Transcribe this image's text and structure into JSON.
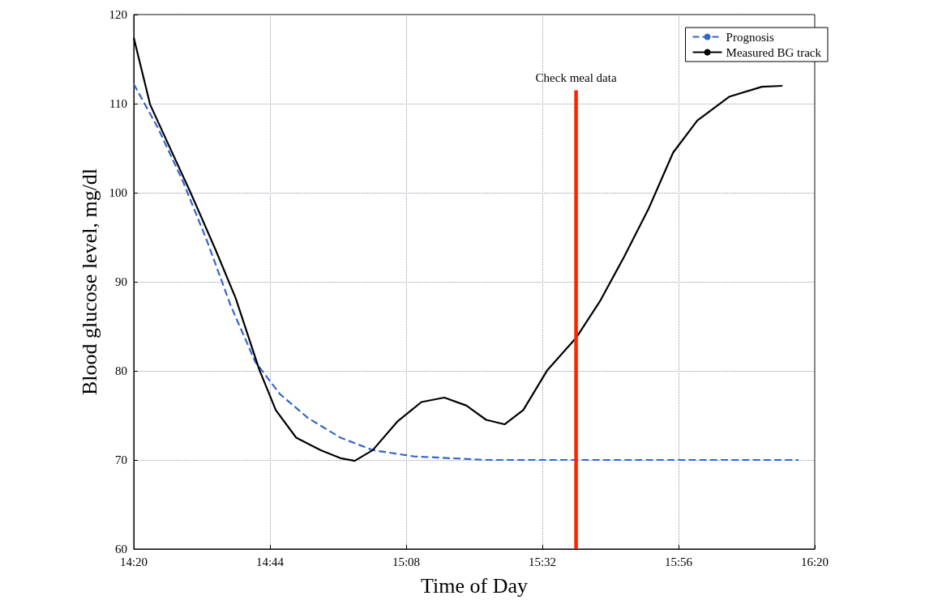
{
  "chart_data": {
    "type": "line",
    "xlabel": "Time of Day",
    "ylabel": "Blood glucose level, mg/dl",
    "xlim": [
      14.333,
      16.333
    ],
    "xticks": [
      {
        "value": 14.333,
        "label": "14:20"
      },
      {
        "value": 14.733,
        "label": "14:44"
      },
      {
        "value": 15.133,
        "label": "15:08"
      },
      {
        "value": 15.533,
        "label": "15:32"
      },
      {
        "value": 15.933,
        "label": "15:56"
      },
      {
        "value": 16.333,
        "label": "16:20"
      }
    ],
    "ylim": [
      60,
      120
    ],
    "yticks": [
      60,
      70,
      80,
      90,
      100,
      110,
      120
    ],
    "grid": true,
    "legend": "top right",
    "marker": "none",
    "series": [
      {
        "name": "Prognosis",
        "color": "#3366cc",
        "line_style": "dashed",
        "x": [
          14.333,
          14.405,
          14.477,
          14.548,
          14.618,
          14.69,
          14.762,
          14.845,
          14.94,
          15.035,
          15.155,
          15.368,
          15.607,
          15.845,
          16.285
        ],
        "values": [
          112.2,
          107.2,
          101.3,
          94.6,
          87.3,
          81.0,
          77.4,
          74.7,
          72.5,
          71.1,
          70.4,
          70.0,
          70.0,
          70.0,
          70.0
        ]
      },
      {
        "name": "Measured BG track",
        "color": "#000000",
        "line_style": "solid",
        "x": [
          14.333,
          14.381,
          14.441,
          14.5,
          14.572,
          14.632,
          14.702,
          14.75,
          14.81,
          14.882,
          14.94,
          14.982,
          15.035,
          15.107,
          15.178,
          15.245,
          15.31,
          15.368,
          15.422,
          15.477,
          15.548,
          15.632,
          15.702,
          15.773,
          15.845,
          15.917,
          15.988,
          16.083,
          16.178,
          16.238
        ],
        "values": [
          117.4,
          109.9,
          104.9,
          100.0,
          93.7,
          88.2,
          80.1,
          75.6,
          72.5,
          71.1,
          70.2,
          69.9,
          71.1,
          74.3,
          76.5,
          77.0,
          76.1,
          74.5,
          74.0,
          75.6,
          80.1,
          83.7,
          87.8,
          92.8,
          98.2,
          104.5,
          108.1,
          110.8,
          111.9,
          112.0
        ]
      },
      {
        "color": "#ff2200",
        "line_style": "solid",
        "x": [
          15.632,
          15.632
        ],
        "values": [
          60,
          111.5
        ]
      }
    ],
    "annotations": [
      {
        "text": "Check meal data",
        "x": 15.632,
        "y": 111.5
      }
    ]
  }
}
